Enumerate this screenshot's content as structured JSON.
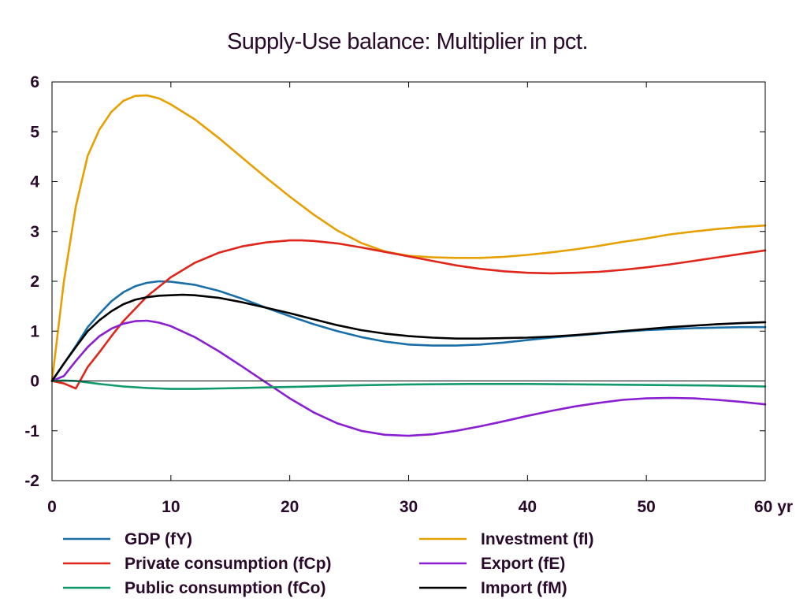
{
  "chart_data": {
    "type": "line",
    "title": "Supply-Use balance: Multiplier in pct.",
    "xlabel": "",
    "ylabel": "",
    "xlim": [
      0,
      60
    ],
    "ylim": [
      -2,
      6
    ],
    "x_ticks": [
      0,
      10,
      20,
      30,
      40,
      50,
      60
    ],
    "x_tick_labels": [
      "0",
      "10",
      "20",
      "30",
      "40",
      "50",
      "60 yr"
    ],
    "y_ticks": [
      -2,
      -1,
      0,
      1,
      2,
      3,
      4,
      5,
      6
    ],
    "y_tick_labels": [
      "-2",
      "-1",
      "0",
      "1",
      "2",
      "3",
      "4",
      "5",
      "6"
    ],
    "grid": false,
    "zero_line": true,
    "legend_position": "bottom",
    "series": [
      {
        "name": "GDP (fY)",
        "color": "#1a6fa8",
        "x": [
          0,
          1,
          2,
          3,
          4,
          5,
          6,
          7,
          8,
          9,
          10,
          12,
          14,
          16,
          18,
          20,
          22,
          24,
          26,
          28,
          30,
          32,
          34,
          36,
          38,
          40,
          42,
          44,
          46,
          48,
          50,
          52,
          54,
          56,
          58,
          60
        ],
        "y": [
          0,
          0.35,
          0.7,
          1.08,
          1.35,
          1.6,
          1.78,
          1.9,
          1.97,
          2.0,
          1.99,
          1.93,
          1.81,
          1.65,
          1.47,
          1.3,
          1.14,
          1.0,
          0.88,
          0.79,
          0.73,
          0.71,
          0.71,
          0.73,
          0.77,
          0.82,
          0.87,
          0.91,
          0.95,
          0.99,
          1.02,
          1.04,
          1.06,
          1.07,
          1.08,
          1.08
        ]
      },
      {
        "name": "Investment (fI)",
        "color": "#e6a000",
        "x": [
          0,
          1,
          2,
          3,
          4,
          5,
          6,
          7,
          8,
          9,
          10,
          12,
          14,
          16,
          18,
          20,
          22,
          24,
          26,
          28,
          30,
          32,
          34,
          36,
          38,
          40,
          42,
          44,
          46,
          48,
          50,
          52,
          54,
          56,
          58,
          60
        ],
        "y": [
          0,
          2.0,
          3.5,
          4.52,
          5.05,
          5.4,
          5.62,
          5.72,
          5.73,
          5.67,
          5.55,
          5.25,
          4.88,
          4.48,
          4.08,
          3.7,
          3.34,
          3.02,
          2.77,
          2.6,
          2.51,
          2.48,
          2.47,
          2.47,
          2.49,
          2.53,
          2.58,
          2.64,
          2.71,
          2.79,
          2.86,
          2.94,
          3.0,
          3.05,
          3.09,
          3.12
        ]
      },
      {
        "name": "Private consumption (fCp)",
        "color": "#e0261b",
        "x": [
          0,
          1,
          2,
          3,
          4,
          5,
          6,
          8,
          10,
          12,
          14,
          16,
          18,
          20,
          21,
          22,
          24,
          26,
          28,
          30,
          32,
          34,
          36,
          38,
          40,
          42,
          44,
          46,
          48,
          50,
          52,
          54,
          56,
          58,
          60
        ],
        "y": [
          0,
          -0.05,
          -0.15,
          0.28,
          0.58,
          0.9,
          1.2,
          1.7,
          2.08,
          2.37,
          2.57,
          2.7,
          2.78,
          2.82,
          2.82,
          2.81,
          2.76,
          2.68,
          2.59,
          2.5,
          2.41,
          2.32,
          2.25,
          2.2,
          2.17,
          2.16,
          2.17,
          2.19,
          2.23,
          2.28,
          2.34,
          2.41,
          2.48,
          2.55,
          2.62
        ]
      },
      {
        "name": "Export (fE)",
        "color": "#8a1fd1",
        "x": [
          0,
          1,
          2,
          3,
          4,
          5,
          6,
          7,
          8,
          9,
          10,
          12,
          14,
          16,
          18,
          20,
          22,
          24,
          26,
          28,
          30,
          32,
          34,
          36,
          38,
          40,
          42,
          44,
          46,
          48,
          50,
          52,
          54,
          56,
          58,
          60
        ],
        "y": [
          0,
          0.1,
          0.4,
          0.68,
          0.9,
          1.05,
          1.15,
          1.2,
          1.21,
          1.17,
          1.1,
          0.88,
          0.6,
          0.29,
          -0.03,
          -0.35,
          -0.63,
          -0.85,
          -1.0,
          -1.08,
          -1.1,
          -1.07,
          -1.0,
          -0.91,
          -0.81,
          -0.7,
          -0.6,
          -0.51,
          -0.44,
          -0.38,
          -0.35,
          -0.34,
          -0.35,
          -0.38,
          -0.42,
          -0.47
        ]
      },
      {
        "name": "Public consumption (fCo)",
        "color": "#11996b",
        "x": [
          0,
          1,
          2,
          4,
          6,
          8,
          10,
          12,
          14,
          16,
          18,
          20,
          25,
          30,
          35,
          40,
          45,
          50,
          55,
          60
        ],
        "y": [
          0,
          0.01,
          0.0,
          -0.06,
          -0.11,
          -0.14,
          -0.16,
          -0.16,
          -0.15,
          -0.14,
          -0.13,
          -0.12,
          -0.09,
          -0.07,
          -0.06,
          -0.06,
          -0.07,
          -0.08,
          -0.09,
          -0.11
        ]
      },
      {
        "name": "Import (fM)",
        "color": "#000000",
        "x": [
          0,
          1,
          2,
          3,
          4,
          5,
          6,
          7,
          8,
          9,
          10,
          11,
          12,
          14,
          16,
          18,
          20,
          22,
          24,
          26,
          28,
          30,
          32,
          34,
          36,
          38,
          40,
          42,
          44,
          46,
          48,
          50,
          52,
          54,
          56,
          58,
          60
        ],
        "y": [
          0,
          0.35,
          0.68,
          1.0,
          1.22,
          1.4,
          1.54,
          1.63,
          1.68,
          1.71,
          1.72,
          1.73,
          1.72,
          1.67,
          1.58,
          1.47,
          1.36,
          1.24,
          1.12,
          1.02,
          0.95,
          0.9,
          0.87,
          0.85,
          0.85,
          0.86,
          0.87,
          0.89,
          0.92,
          0.96,
          1.0,
          1.04,
          1.08,
          1.11,
          1.14,
          1.16,
          1.18
        ]
      }
    ]
  }
}
